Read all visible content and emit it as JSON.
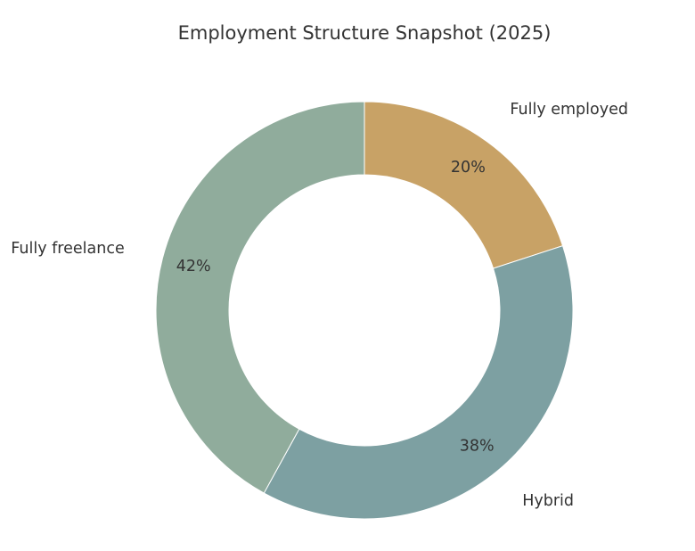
{
  "chart_data": {
    "type": "pie",
    "variant": "donut",
    "title": "Employment Structure Snapshot (2025)",
    "categories": [
      "Fully employed",
      "Hybrid",
      "Fully freelance"
    ],
    "values": [
      20,
      38,
      42
    ],
    "percent_labels": [
      "20%",
      "38%",
      "42%"
    ],
    "colors": [
      "#c8a266",
      "#7da0a2",
      "#90ac9c"
    ],
    "start_angle_deg": 90,
    "direction": "clockwise",
    "legend": "none"
  }
}
